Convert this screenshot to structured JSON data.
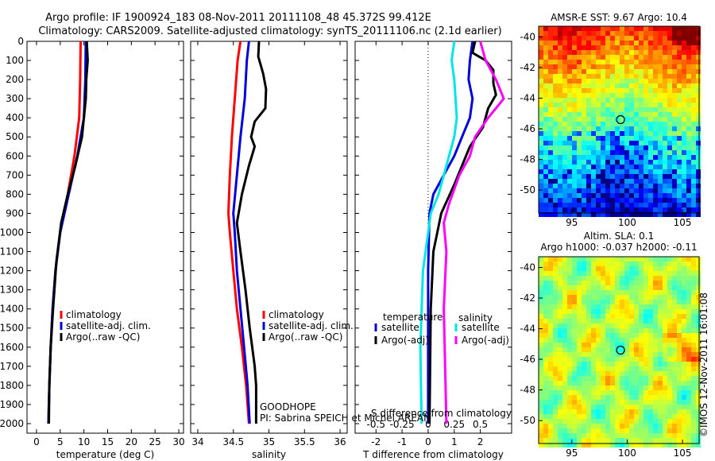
{
  "header": {
    "title_line1": "Argo profile: IF 1900924_183 08-Nov-2011 20111108_48 45.372S 99.412E",
    "title_line2": "Climatology: CARS2009. Satellite-adjusted climatology: synTS_20111106.nc (2.1d earlier)"
  },
  "colors": {
    "climatology": "#ff0000",
    "satellite": "#0000dd",
    "argo": "#000000",
    "sal_satellite": "#00e6e6",
    "sal_argo": "#ff00ff"
  },
  "annotations": {
    "goodhope": "GOODHOPE",
    "pi": "PI: Sabrina SPEICH et Michel AREAN",
    "s_diff": "S difference from climatology",
    "stamp": "©IMOS 12-Nov-2011 16:01:08"
  },
  "chart_data": [
    {
      "type": "line",
      "xlabel": "temperature (deg C)",
      "xlim": [
        -2,
        31
      ],
      "ylim": [
        2050,
        0
      ],
      "xticks": [
        "0",
        "5",
        "10",
        "15",
        "20",
        "25",
        "30"
      ],
      "yticks": [
        "0",
        "100",
        "200",
        "300",
        "400",
        "500",
        "600",
        "700",
        "800",
        "900",
        "1000",
        "1100",
        "1200",
        "1300",
        "1400",
        "1500",
        "1600",
        "1700",
        "1800",
        "1900",
        "2000"
      ],
      "legend": [
        "climatology",
        "satellite-adj. clim.",
        "Argo(..raw -QC)"
      ],
      "series": [
        {
          "name": "climatology",
          "points": [
            [
              9.3,
              0
            ],
            [
              9.2,
              200
            ],
            [
              9.0,
              400
            ],
            [
              8.0,
              600
            ],
            [
              6.6,
              800
            ],
            [
              5.0,
              1000
            ],
            [
              4.0,
              1200
            ],
            [
              3.4,
              1400
            ],
            [
              3.0,
              1600
            ],
            [
              2.7,
              1800
            ],
            [
              2.5,
              2000
            ]
          ]
        },
        {
          "name": "satellite-adj. clim.",
          "points": [
            [
              10.4,
              0
            ],
            [
              10.3,
              200
            ],
            [
              10.0,
              400
            ],
            [
              8.6,
              600
            ],
            [
              6.8,
              800
            ],
            [
              5.0,
              1000
            ],
            [
              4.0,
              1200
            ],
            [
              3.4,
              1400
            ],
            [
              3.0,
              1600
            ],
            [
              2.7,
              1800
            ],
            [
              2.5,
              2000
            ]
          ]
        },
        {
          "name": "Argo(..raw -QC)",
          "points": [
            [
              10.6,
              0
            ],
            [
              10.8,
              100
            ],
            [
              10.5,
              200
            ],
            [
              10.4,
              300
            ],
            [
              10.0,
              400
            ],
            [
              9.6,
              500
            ],
            [
              8.2,
              650
            ],
            [
              6.6,
              800
            ],
            [
              5.2,
              950
            ],
            [
              4.2,
              1150
            ],
            [
              3.5,
              1400
            ],
            [
              3.0,
              1600
            ],
            [
              2.7,
              1800
            ],
            [
              2.6,
              2000
            ]
          ]
        }
      ]
    },
    {
      "type": "line",
      "xlabel": "salinity",
      "xlim": [
        33.9,
        36.1
      ],
      "ylim": [
        2050,
        0
      ],
      "xticks": [
        "34",
        "34.5",
        "35",
        "35.5",
        "36"
      ],
      "legend": [
        "climatology",
        "satellite-adj. clim.",
        "Argo(..raw -QC)"
      ],
      "series": [
        {
          "name": "climatology",
          "points": [
            [
              34.6,
              0
            ],
            [
              34.56,
              100
            ],
            [
              34.52,
              300
            ],
            [
              34.48,
              500
            ],
            [
              34.45,
              700
            ],
            [
              34.43,
              900
            ],
            [
              34.45,
              1000
            ],
            [
              34.5,
              1200
            ],
            [
              34.55,
              1400
            ],
            [
              34.62,
              1600
            ],
            [
              34.68,
              1800
            ],
            [
              34.72,
              2000
            ]
          ]
        },
        {
          "name": "satellite-adj. clim.",
          "points": [
            [
              34.72,
              0
            ],
            [
              34.69,
              100
            ],
            [
              34.66,
              300
            ],
            [
              34.6,
              500
            ],
            [
              34.55,
              700
            ],
            [
              34.5,
              900
            ],
            [
              34.52,
              1000
            ],
            [
              34.55,
              1200
            ],
            [
              34.6,
              1400
            ],
            [
              34.65,
              1600
            ],
            [
              34.7,
              1800
            ],
            [
              34.73,
              2000
            ]
          ]
        },
        {
          "name": "Argo(..raw -QC)",
          "points": [
            [
              34.86,
              0
            ],
            [
              34.85,
              80
            ],
            [
              34.92,
              170
            ],
            [
              34.96,
              250
            ],
            [
              34.95,
              350
            ],
            [
              34.8,
              420
            ],
            [
              34.75,
              500
            ],
            [
              34.8,
              550
            ],
            [
              34.72,
              650
            ],
            [
              34.62,
              800
            ],
            [
              34.55,
              950
            ],
            [
              34.6,
              1100
            ],
            [
              34.67,
              1300
            ],
            [
              34.73,
              1500
            ],
            [
              34.8,
              1700
            ],
            [
              34.82,
              1800
            ],
            [
              34.82,
              2000
            ]
          ]
        }
      ]
    },
    {
      "type": "line",
      "xlabel": "T difference from climatology",
      "xlim": [
        -2.8,
        3.2
      ],
      "ylim": [
        2050,
        0
      ],
      "xticks": [
        "-2",
        "-1",
        "0",
        "1",
        "2"
      ],
      "xticks_sal": [
        "-0.5",
        "-0.25",
        "0",
        "0.25",
        "0.5"
      ],
      "legend_headers": [
        "temperature",
        "salinity"
      ],
      "legend": [
        "satellite",
        "Argo(-adj)",
        "satellite",
        "Argo(-adj)"
      ],
      "series": [
        {
          "name": "satellite",
          "quantity": "T",
          "points": [
            [
              1.7,
              0
            ],
            [
              1.6,
              100
            ],
            [
              1.55,
              200
            ],
            [
              1.7,
              300
            ],
            [
              1.6,
              400
            ],
            [
              1.3,
              500
            ],
            [
              1.0,
              600
            ],
            [
              0.6,
              700
            ],
            [
              0.2,
              800
            ],
            [
              0.05,
              900
            ],
            [
              0.0,
              1200
            ],
            [
              0.0,
              2000
            ]
          ]
        },
        {
          "name": "Argo(-adj)",
          "quantity": "T",
          "points": [
            [
              1.8,
              0
            ],
            [
              1.7,
              60
            ],
            [
              2.2,
              100
            ],
            [
              2.5,
              150
            ],
            [
              2.5,
              220
            ],
            [
              2.6,
              280
            ],
            [
              2.3,
              350
            ],
            [
              2.1,
              450
            ],
            [
              1.6,
              550
            ],
            [
              1.3,
              650
            ],
            [
              1.0,
              750
            ],
            [
              0.5,
              900
            ],
            [
              0.2,
              1100
            ],
            [
              0.1,
              1400
            ],
            [
              0.05,
              2000
            ]
          ]
        },
        {
          "name": "satellite",
          "quantity": "S",
          "points": [
            [
              1.0,
              0
            ],
            [
              0.9,
              100
            ],
            [
              1.0,
              200
            ],
            [
              1.1,
              400
            ],
            [
              1.0,
              500
            ],
            [
              0.8,
              600
            ],
            [
              0.4,
              800
            ],
            [
              0.1,
              900
            ],
            [
              -0.2,
              1200
            ],
            [
              -0.3,
              1600
            ],
            [
              -0.25,
              2000
            ]
          ]
        },
        {
          "name": "Argo(-adj)",
          "quantity": "S",
          "points": [
            [
              2.0,
              0
            ],
            [
              2.2,
              100
            ],
            [
              2.6,
              200
            ],
            [
              2.9,
              300
            ],
            [
              2.3,
              400
            ],
            [
              1.8,
              500
            ],
            [
              1.6,
              600
            ],
            [
              1.2,
              700
            ],
            [
              0.8,
              850
            ],
            [
              0.6,
              950
            ],
            [
              0.7,
              1100
            ],
            [
              0.6,
              1400
            ],
            [
              0.65,
              1700
            ],
            [
              0.7,
              2000
            ]
          ]
        }
      ]
    },
    {
      "type": "heatmap",
      "title": "AMSR-E SST: 9.67 Argo: 10.4",
      "xlim": [
        92,
        106.5
      ],
      "ylim": [
        -51.5,
        -39.3
      ],
      "xticks": [
        "95",
        "100",
        "105"
      ],
      "yticks": [
        "-40",
        "-42",
        "-44",
        "-46",
        "-48",
        "-50"
      ],
      "marker": [
        99.4,
        -45.4
      ]
    },
    {
      "type": "heatmap",
      "title_line1": "Altim. SLA: 0.1",
      "title_line2": "Argo h1000: -0.037 h2000: -0.11",
      "xlim": [
        92,
        106.5
      ],
      "ylim": [
        -51.5,
        -39.3
      ],
      "xticks": [
        "95",
        "100",
        "105"
      ],
      "yticks": [
        "-40",
        "-42",
        "-44",
        "-46",
        "-48",
        "-50"
      ],
      "marker": [
        99.4,
        -45.4
      ]
    }
  ]
}
